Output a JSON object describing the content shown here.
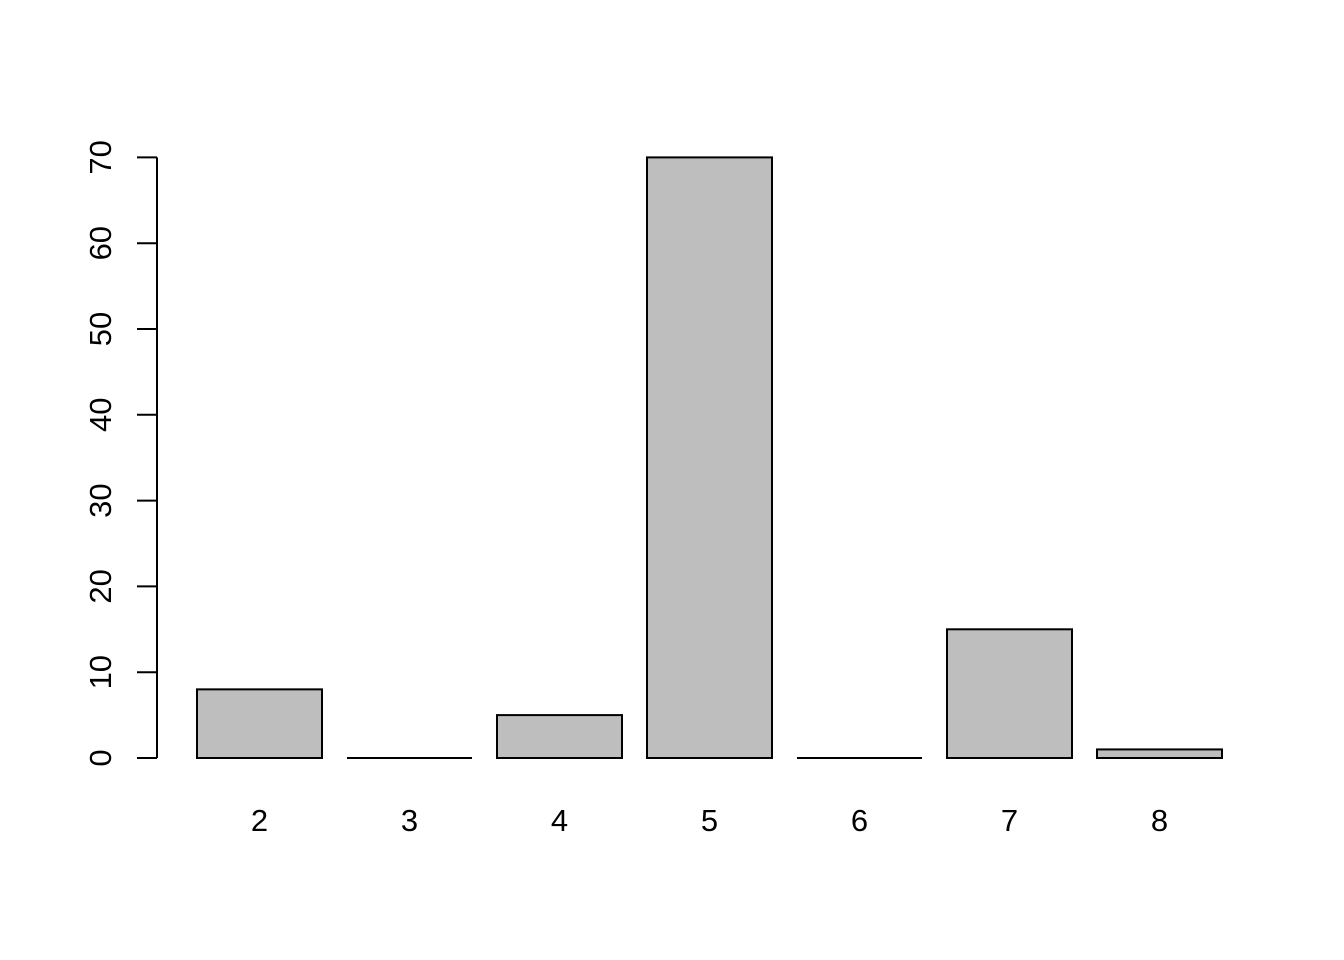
{
  "chart_data": {
    "type": "bar",
    "title": "",
    "xlabel": "",
    "ylabel": "",
    "categories": [
      "2",
      "3",
      "4",
      "5",
      "6",
      "7",
      "8"
    ],
    "values": [
      8,
      0,
      5,
      70,
      0,
      15,
      1
    ],
    "ylim": [
      0,
      70
    ],
    "yticks": [
      0,
      10,
      20,
      30,
      40,
      50,
      60,
      70
    ],
    "ytick_labels": [
      "0",
      "10",
      "20",
      "30",
      "40",
      "50",
      "60",
      "70"
    ],
    "grid": false,
    "legend": null,
    "bar_fill": "#BEBEBE",
    "bar_stroke": "#000000",
    "axis_color": "#000000",
    "background": "#FFFFFF"
  }
}
